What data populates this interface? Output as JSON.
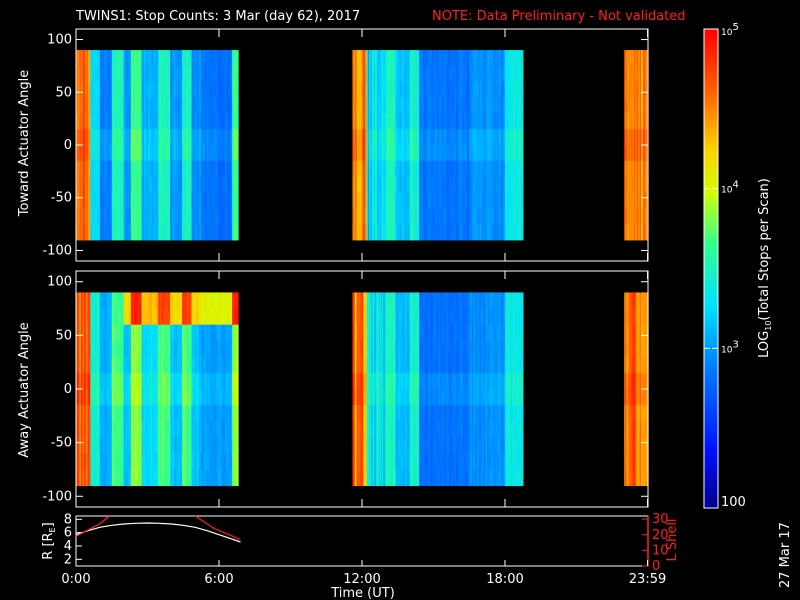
{
  "header": {
    "title": "TWINS1: Stop Counts:  3 Mar (day  62), 2017",
    "note": "NOTE: Data Preliminary - Not validated"
  },
  "date_stamp": "27 Mar 17",
  "colors": {
    "background": "#000000",
    "axes": "#ffffff",
    "note": "#ff2020",
    "lshell": "#ff2020"
  },
  "chart_data": [
    {
      "type": "heatmap",
      "ylabel": "Toward Actuator Angle",
      "ylim": [
        -110,
        110
      ],
      "yticks": [
        "100",
        "50",
        "0",
        "-50",
        "-100"
      ],
      "data_x_ranges_hours": [
        [
          0.0,
          6.75
        ],
        [
          11.6,
          18.75
        ],
        [
          23.0,
          23.98
        ]
      ],
      "angle_range": [
        -90,
        90
      ],
      "colormap": "rainbow (blue low, red high)",
      "log_scale": true
    },
    {
      "type": "heatmap",
      "ylabel": "Away Actuator Angle",
      "ylim": [
        -110,
        110
      ],
      "yticks": [
        "100",
        "50",
        "0",
        "-50",
        "-100"
      ],
      "data_x_ranges_hours": [
        [
          0.0,
          6.75
        ],
        [
          11.6,
          18.75
        ],
        [
          23.0,
          23.98
        ]
      ],
      "angle_range": [
        -90,
        90
      ],
      "colormap": "rainbow (blue low, red high)",
      "log_scale": true
    },
    {
      "type": "line",
      "ylabel": "R [R",
      "ylabel_sub": "E",
      "ylabel_close": "]",
      "yticks_left": [
        "8",
        "6",
        "4",
        "2"
      ],
      "ylim_left": [
        1,
        8.5
      ],
      "y2label": "L Shell",
      "yticks_right": [
        "30",
        "20",
        "10",
        "0"
      ],
      "ylim_right": [
        0,
        32
      ],
      "series": [
        {
          "axis": "left",
          "color": "#ffffff",
          "x": [
            0,
            0.5,
            1,
            1.5,
            2,
            2.5,
            3,
            3.5,
            4,
            4.5,
            5,
            5.5,
            6,
            6.5,
            6.9
          ],
          "y": [
            5.7,
            6.3,
            6.8,
            7.1,
            7.3,
            7.4,
            7.45,
            7.4,
            7.3,
            7.1,
            6.8,
            6.3,
            5.7,
            5.1,
            4.6
          ]
        },
        {
          "axis": "right",
          "color": "#ff2020",
          "x": [
            0,
            1,
            1.4
          ],
          "y": [
            19,
            27,
            33
          ]
        },
        {
          "axis": "right",
          "color": "#ff2020",
          "x": [
            5,
            5.8,
            6.9
          ],
          "y": [
            33,
            24,
            17
          ]
        }
      ]
    }
  ],
  "time_axis": {
    "label": "Time (UT)",
    "ticks": [
      {
        "h": 0,
        "label": "0:00"
      },
      {
        "h": 6,
        "label": "6:00"
      },
      {
        "h": 12,
        "label": "12:00"
      },
      {
        "h": 18,
        "label": "18:00"
      },
      {
        "h": 23.98,
        "label": "23:59"
      }
    ],
    "range": [
      0,
      24
    ]
  },
  "colorbar": {
    "label": "LOG10(Total Stops per Scan)",
    "label_pre": "LOG",
    "label_sub": "10",
    "label_post": "(Total Stops per Scan)",
    "range": [
      100,
      100000
    ],
    "ticks": [
      {
        "v": 100000,
        "base": "10",
        "exp": "5"
      },
      {
        "v": 10000,
        "base": "10",
        "exp": "4"
      },
      {
        "v": 1000,
        "base": "10",
        "exp": "3"
      },
      {
        "v": 100,
        "base": "100",
        "exp": ""
      }
    ]
  }
}
